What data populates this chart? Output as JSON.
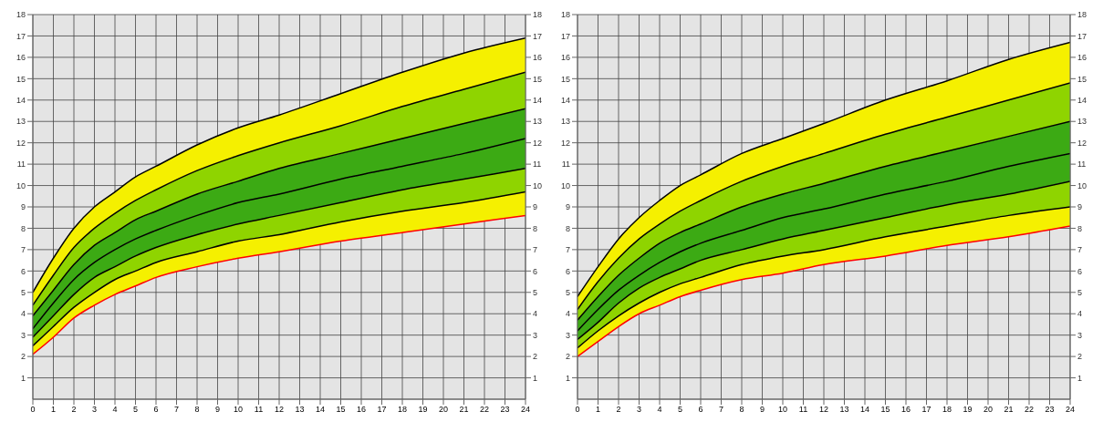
{
  "chart_data": [
    {
      "type": "line",
      "x": [
        0,
        1,
        2,
        3,
        4,
        5,
        6,
        8,
        10,
        12,
        15,
        18,
        21,
        24
      ],
      "xlim": [
        0,
        24
      ],
      "xticks": [
        0,
        1,
        2,
        3,
        4,
        5,
        6,
        7,
        8,
        9,
        10,
        11,
        12,
        13,
        14,
        15,
        16,
        17,
        18,
        19,
        20,
        21,
        22,
        23,
        24
      ],
      "ylim": [
        0,
        18
      ],
      "yticks": [
        1,
        2,
        3,
        4,
        5,
        6,
        7,
        8,
        9,
        10,
        11,
        12,
        13,
        14,
        15,
        16,
        17,
        18
      ],
      "y2lim": [
        0,
        18
      ],
      "y2ticks": [
        1,
        2,
        3,
        4,
        5,
        6,
        7,
        8,
        9,
        10,
        11,
        12,
        13,
        14,
        15,
        16,
        17,
        18
      ],
      "grid": true,
      "marker": "none",
      "line_style": "solid",
      "series": [
        {
          "color": "#ff0000",
          "values": [
            2.1,
            2.9,
            3.8,
            4.4,
            4.9,
            5.3,
            5.7,
            6.2,
            6.6,
            6.9,
            7.4,
            7.8,
            8.2,
            8.6
          ]
        },
        {
          "type": "area",
          "color": "#f5f000",
          "values": [
            2.5,
            3.4,
            4.3,
            5.0,
            5.6,
            6.0,
            6.4,
            6.9,
            7.4,
            7.7,
            8.3,
            8.8,
            9.2,
            9.7
          ]
        },
        {
          "type": "area",
          "color": "#8fd400",
          "values": [
            2.9,
            3.9,
            4.9,
            5.7,
            6.2,
            6.7,
            7.1,
            7.7,
            8.2,
            8.6,
            9.2,
            9.8,
            10.3,
            10.8
          ]
        },
        {
          "type": "area",
          "color": "#3caa14",
          "values": [
            3.3,
            4.5,
            5.6,
            6.4,
            7.0,
            7.5,
            7.9,
            8.6,
            9.2,
            9.6,
            10.3,
            10.9,
            11.5,
            12.2
          ]
        },
        {
          "type": "area",
          "color": "#3caa14",
          "values": [
            3.9,
            5.1,
            6.3,
            7.2,
            7.8,
            8.4,
            8.8,
            9.6,
            10.2,
            10.8,
            11.5,
            12.2,
            12.9,
            13.6
          ]
        },
        {
          "type": "area",
          "color": "#8fd400",
          "values": [
            4.4,
            5.8,
            7.1,
            8.0,
            8.7,
            9.3,
            9.8,
            10.7,
            11.4,
            12.0,
            12.8,
            13.7,
            14.5,
            15.3
          ]
        },
        {
          "type": "area",
          "color": "#f5f000",
          "values": [
            5.0,
            6.6,
            8.0,
            9.0,
            9.7,
            10.4,
            10.9,
            11.9,
            12.7,
            13.3,
            14.3,
            15.3,
            16.2,
            16.9
          ]
        }
      ]
    },
    {
      "type": "line",
      "x": [
        0,
        1,
        2,
        3,
        4,
        5,
        6,
        8,
        10,
        12,
        15,
        18,
        21,
        24
      ],
      "xlim": [
        0,
        24
      ],
      "xticks": [
        0,
        1,
        2,
        3,
        4,
        5,
        6,
        7,
        8,
        9,
        10,
        11,
        12,
        13,
        14,
        15,
        16,
        17,
        18,
        19,
        20,
        21,
        22,
        23,
        24
      ],
      "ylim": [
        0,
        18
      ],
      "yticks": [
        1,
        2,
        3,
        4,
        5,
        6,
        7,
        8,
        9,
        10,
        11,
        12,
        13,
        14,
        15,
        16,
        17,
        18
      ],
      "y2lim": [
        0,
        18
      ],
      "y2ticks": [
        1,
        2,
        3,
        4,
        5,
        6,
        7,
        8,
        9,
        10,
        11,
        12,
        13,
        14,
        15,
        16,
        17,
        18
      ],
      "grid": true,
      "marker": "none",
      "line_style": "solid",
      "series": [
        {
          "color": "#ff0000",
          "values": [
            2.0,
            2.7,
            3.4,
            4.0,
            4.4,
            4.8,
            5.1,
            5.6,
            5.9,
            6.3,
            6.7,
            7.2,
            7.6,
            8.1
          ]
        },
        {
          "type": "area",
          "color": "#f5f000",
          "values": [
            2.4,
            3.2,
            3.9,
            4.5,
            5.0,
            5.4,
            5.7,
            6.3,
            6.7,
            7.0,
            7.6,
            8.1,
            8.6,
            9.0
          ]
        },
        {
          "type": "area",
          "color": "#8fd400",
          "values": [
            2.8,
            3.6,
            4.5,
            5.2,
            5.7,
            6.1,
            6.5,
            7.0,
            7.5,
            7.9,
            8.5,
            9.1,
            9.6,
            10.2
          ]
        },
        {
          "type": "area",
          "color": "#3caa14",
          "values": [
            3.2,
            4.2,
            5.1,
            5.8,
            6.4,
            6.9,
            7.3,
            7.9,
            8.5,
            8.9,
            9.6,
            10.2,
            10.9,
            11.5
          ]
        },
        {
          "type": "area",
          "color": "#3caa14",
          "values": [
            3.7,
            4.8,
            5.8,
            6.6,
            7.3,
            7.8,
            8.2,
            9.0,
            9.6,
            10.1,
            10.9,
            11.6,
            12.3,
            13.0
          ]
        },
        {
          "type": "area",
          "color": "#8fd400",
          "values": [
            4.2,
            5.5,
            6.6,
            7.5,
            8.2,
            8.8,
            9.3,
            10.2,
            10.9,
            11.5,
            12.4,
            13.2,
            14.0,
            14.8
          ]
        },
        {
          "type": "area",
          "color": "#f5f000",
          "values": [
            4.8,
            6.2,
            7.5,
            8.5,
            9.3,
            10.0,
            10.5,
            11.5,
            12.2,
            12.9,
            14.0,
            14.9,
            15.9,
            16.7
          ]
        }
      ]
    }
  ]
}
